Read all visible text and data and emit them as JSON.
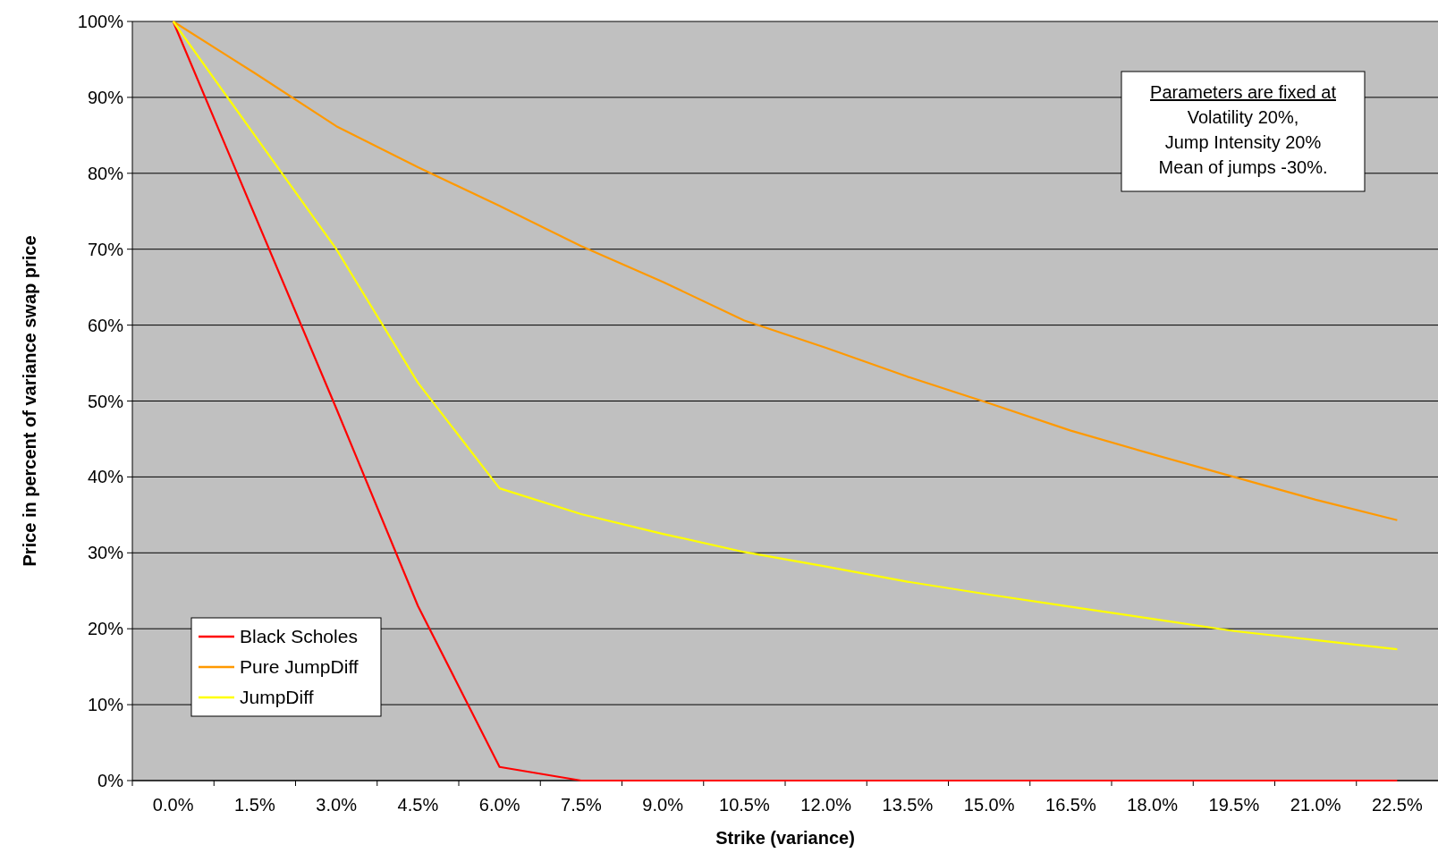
{
  "chart_data": {
    "type": "line",
    "xlabel": "Strike (variance)",
    "ylabel": "Price in percent of variance swap price",
    "categories": [
      "0.0%",
      "1.5%",
      "3.0%",
      "4.5%",
      "6.0%",
      "7.5%",
      "9.0%",
      "10.5%",
      "12.0%",
      "13.5%",
      "15.0%",
      "16.5%",
      "18.0%",
      "19.5%",
      "21.0%",
      "22.5%"
    ],
    "series": [
      {
        "name": "Black Scholes",
        "color": "#ff0000",
        "values": [
          100,
          74.5,
          49,
          23,
          1.8,
          0,
          0,
          0,
          0,
          0,
          0,
          0,
          0,
          0,
          0,
          0
        ]
      },
      {
        "name": "Pure JumpDiff",
        "color": "#ff9900",
        "values": [
          100,
          93.2,
          86.2,
          80.8,
          75.7,
          70.4,
          65.7,
          60.6,
          57,
          53.2,
          49.7,
          46.1,
          43,
          40,
          37,
          34.3
        ]
      },
      {
        "name": "JumpDiff",
        "color": "#ffff00",
        "values": [
          100,
          85,
          70,
          52.4,
          38.5,
          35.1,
          32.5,
          30.1,
          28.2,
          26.2,
          24.5,
          22.9,
          21.3,
          19.7,
          18.5,
          17.3
        ]
      }
    ],
    "ylim": [
      0,
      100
    ],
    "yticks": [
      {
        "value": 0,
        "label": "0%"
      },
      {
        "value": 10,
        "label": "10%"
      },
      {
        "value": 20,
        "label": "20%"
      },
      {
        "value": 30,
        "label": "30%"
      },
      {
        "value": 40,
        "label": "40%"
      },
      {
        "value": 50,
        "label": "50%"
      },
      {
        "value": 60,
        "label": "60%"
      },
      {
        "value": 70,
        "label": "70%"
      },
      {
        "value": 80,
        "label": "80%"
      },
      {
        "value": 90,
        "label": "90%"
      },
      {
        "value": 100,
        "label": "100%"
      }
    ],
    "grid": "y",
    "legend": "bottom left",
    "marker": "none",
    "line_style": "solid",
    "annotations": [
      "Parameters are fixed at",
      "Volatility 20%,",
      "Jump Intensity 20%",
      "Mean of jumps -30%."
    ]
  }
}
